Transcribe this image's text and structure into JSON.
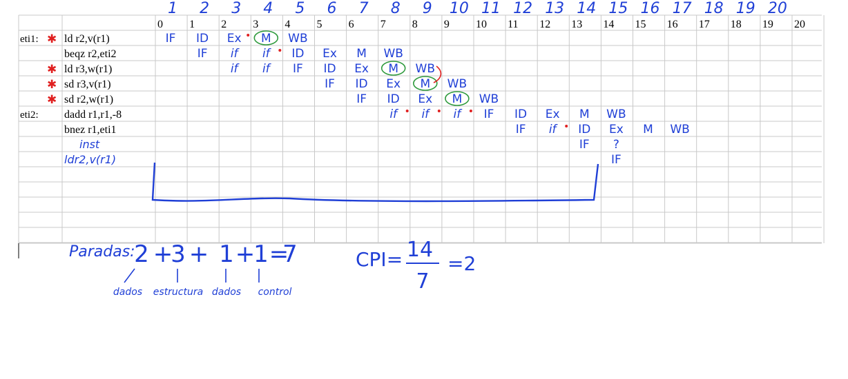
{
  "top_cycle_numbers": [
    "1",
    "2",
    "3",
    "4",
    "5",
    "6",
    "7",
    "8",
    "9",
    "10",
    "11",
    "12",
    "13",
    "14",
    "15",
    "16",
    "17",
    "18",
    "19",
    "20"
  ],
  "column_headers": [
    "0",
    "1",
    "2",
    "3",
    "4",
    "5",
    "6",
    "7",
    "8",
    "9",
    "10",
    "11",
    "12",
    "13",
    "14",
    "15",
    "16",
    "17",
    "18",
    "19",
    "20"
  ],
  "rows": [
    {
      "label": "eti1:",
      "instr": "ld r2,v(r1)",
      "star": true,
      "stages": [
        {
          "c": 0,
          "t": "IF"
        },
        {
          "c": 1,
          "t": "ID"
        },
        {
          "c": 2,
          "t": "Ex",
          "dot": true
        },
        {
          "c": 3,
          "t": "M",
          "circle": true
        },
        {
          "c": 4,
          "t": "WB"
        }
      ]
    },
    {
      "label": "",
      "instr": "beqz r2,eti2",
      "star": false,
      "stages": [
        {
          "c": 1,
          "t": "IF"
        },
        {
          "c": 2,
          "t": "if",
          "dot": false
        },
        {
          "c": 3,
          "t": "if",
          "dot": true
        },
        {
          "c": 4,
          "t": "ID"
        },
        {
          "c": 5,
          "t": "Ex"
        },
        {
          "c": 6,
          "t": "M"
        },
        {
          "c": 7,
          "t": "WB"
        }
      ]
    },
    {
      "label": "",
      "instr": "ld r3,w(r1)",
      "star": true,
      "stages": [
        {
          "c": 2,
          "t": "if"
        },
        {
          "c": 3,
          "t": "if"
        },
        {
          "c": 4,
          "t": "IF"
        },
        {
          "c": 5,
          "t": "ID"
        },
        {
          "c": 6,
          "t": "Ex"
        },
        {
          "c": 7,
          "t": "M",
          "circle": true
        },
        {
          "c": 8,
          "t": "WB"
        }
      ]
    },
    {
      "label": "",
      "instr": "sd r3,v(r1)",
      "star": true,
      "stages": [
        {
          "c": 5,
          "t": "IF"
        },
        {
          "c": 6,
          "t": "ID"
        },
        {
          "c": 7,
          "t": "Ex"
        },
        {
          "c": 8,
          "t": "M",
          "circle": true
        },
        {
          "c": 9,
          "t": "WB"
        }
      ]
    },
    {
      "label": "",
      "instr": "sd r2,w(r1)",
      "star": true,
      "stages": [
        {
          "c": 6,
          "t": "IF"
        },
        {
          "c": 7,
          "t": "ID"
        },
        {
          "c": 8,
          "t": "Ex"
        },
        {
          "c": 9,
          "t": "M",
          "circle": true
        },
        {
          "c": 10,
          "t": "WB"
        }
      ]
    },
    {
      "label": "eti2:",
      "instr": "dadd r1,r1,-8",
      "star": false,
      "stages": [
        {
          "c": 7,
          "t": "if",
          "dot": true
        },
        {
          "c": 8,
          "t": "if",
          "dot": true
        },
        {
          "c": 9,
          "t": "if",
          "dot": true
        },
        {
          "c": 10,
          "t": "IF"
        },
        {
          "c": 11,
          "t": "ID"
        },
        {
          "c": 12,
          "t": "Ex"
        },
        {
          "c": 13,
          "t": "M"
        },
        {
          "c": 14,
          "t": "WB"
        }
      ]
    },
    {
      "label": "",
      "instr": "bnez r1,eti1",
      "star": false,
      "stages": [
        {
          "c": 11,
          "t": "IF"
        },
        {
          "c": 12,
          "t": "if",
          "dot": true
        },
        {
          "c": 13,
          "t": "ID"
        },
        {
          "c": 14,
          "t": "Ex"
        },
        {
          "c": 15,
          "t": "M"
        },
        {
          "c": 16,
          "t": "WB"
        }
      ]
    },
    {
      "label": "",
      "instr": "inst",
      "star": false,
      "handwritten": true,
      "stages": [
        {
          "c": 13,
          "t": "IF"
        },
        {
          "c": 14,
          "t": "?"
        }
      ]
    },
    {
      "label": "",
      "instr": "ldr2,v(r1)",
      "star": false,
      "handwritten": true,
      "stages": [
        {
          "c": 14,
          "t": "IF"
        }
      ]
    }
  ],
  "paradas": {
    "label": "Paradas:",
    "equation": [
      "2",
      "+",
      "3",
      "+",
      "1",
      "+",
      "1",
      "=",
      "7"
    ],
    "notes": [
      "dados",
      "estructura",
      "dados",
      "control"
    ]
  },
  "cpi": {
    "label": "CPI=",
    "numerator": "14",
    "denominator": "7",
    "result": "=2"
  },
  "colors": {
    "ink": "#1f3fd6",
    "dot": "#e02020",
    "circle": "#2e9a3c",
    "grid": "#c8c8c8",
    "star": "#e02020"
  }
}
